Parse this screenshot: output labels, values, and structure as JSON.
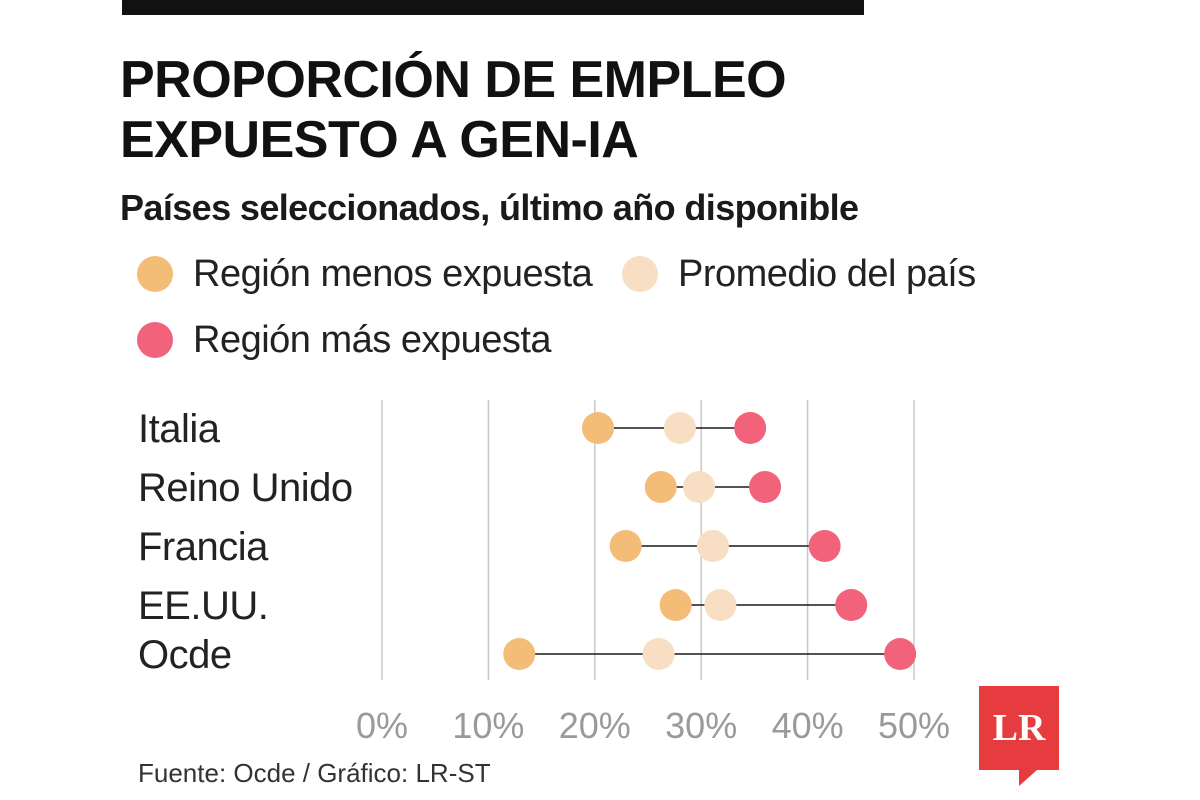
{
  "header": {
    "title_line1": "PROPORCIÓN DE EMPLEO",
    "title_line2": "EXPUESTO A GEN-IA",
    "subtitle": "Países seleccionados, último año disponible"
  },
  "legend": [
    {
      "label": "Región menos expuesta",
      "color": "#F3BD78"
    },
    {
      "label": "Promedio del país",
      "color": "#F8DEC3"
    },
    {
      "label": "Región más expuesta",
      "color": "#F2627A"
    }
  ],
  "chart_data": {
    "type": "dot-range",
    "categories": [
      "Italia",
      "Reino Unido",
      "Francia",
      "EE.UU.",
      "Ocde"
    ],
    "series": [
      {
        "name": "Región menos expuesta",
        "color": "#F3BD78",
        "values": [
          20.3,
          26.2,
          22.9,
          27.6,
          12.9
        ]
      },
      {
        "name": "Promedio del país",
        "color": "#F8DEC3",
        "values": [
          28.0,
          29.8,
          31.1,
          31.8,
          26.0
        ]
      },
      {
        "name": "Región más expuesta",
        "color": "#F2627A",
        "values": [
          34.6,
          36.0,
          41.6,
          44.1,
          48.7
        ]
      }
    ],
    "x_ticks": [
      0,
      10,
      20,
      30,
      40,
      50
    ],
    "x_tick_labels": [
      "0%",
      "10%",
      "20%",
      "30%",
      "40%",
      "50%"
    ],
    "xlim": [
      0,
      50
    ],
    "grid": true,
    "legend_position": "top"
  },
  "footer": {
    "source": "Fuente: Ocde / Gráfico: LR-ST",
    "logo_text": "LR",
    "logo_color": "#E63B3F"
  }
}
